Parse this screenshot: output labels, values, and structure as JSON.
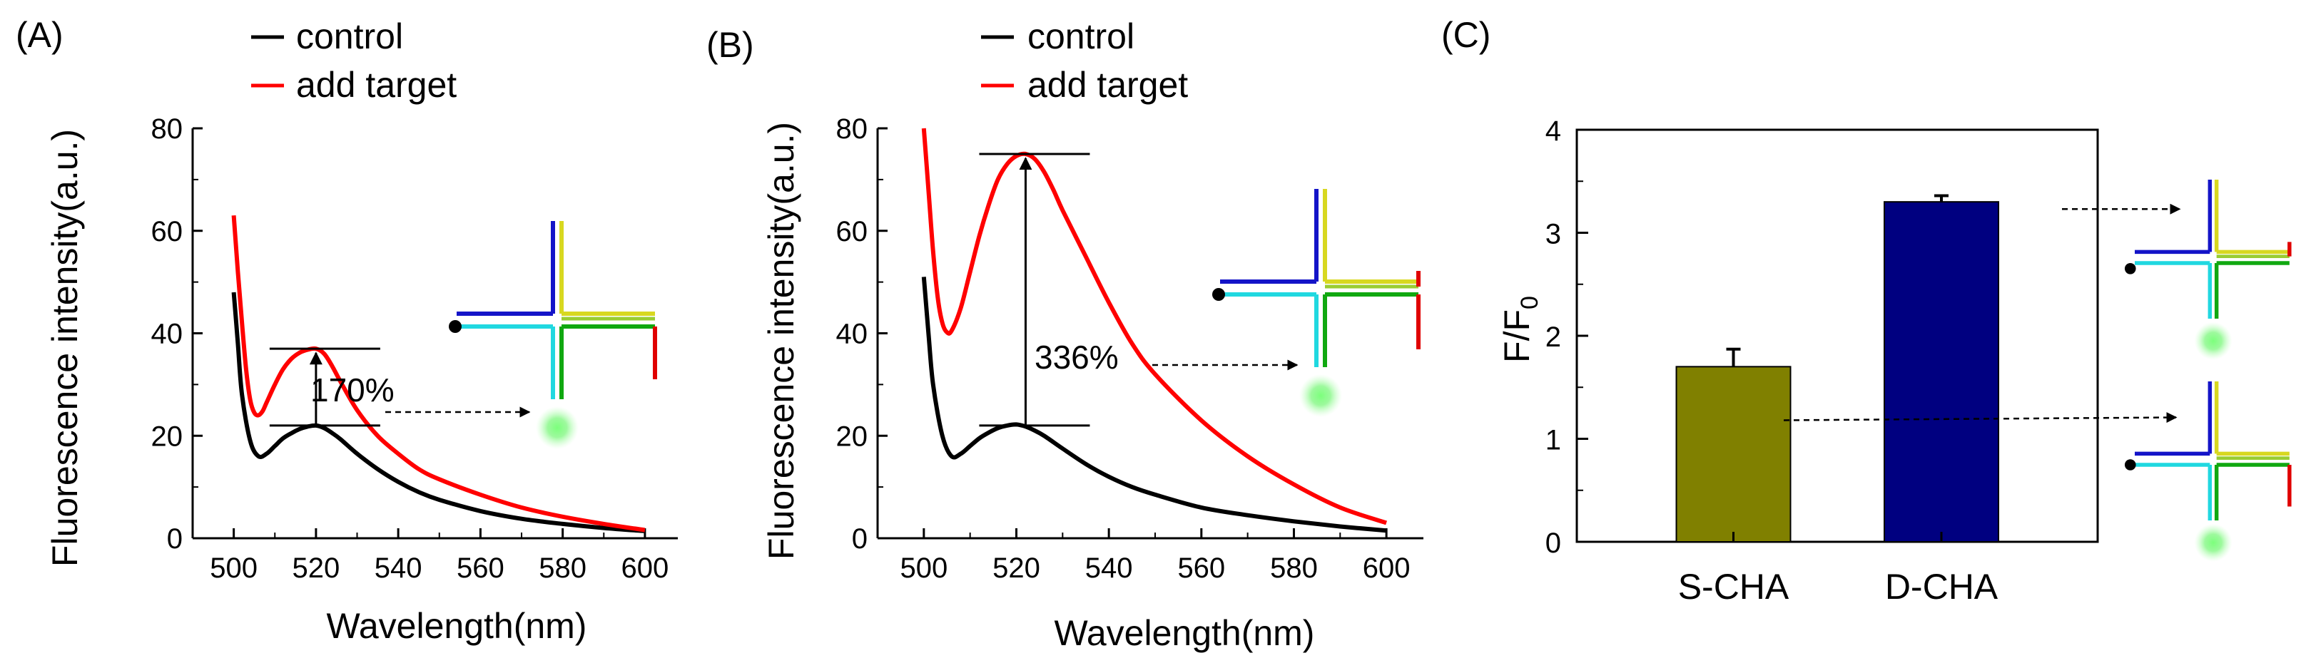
{
  "colors": {
    "control": "#000000",
    "target": "#ff0000",
    "bar_s": "#808000",
    "bar_d": "#000080",
    "blue": "#1414c8",
    "yellow": "#d8d820",
    "cyan": "#20d8e0",
    "green": "#10a810",
    "red": "#e00000",
    "glow": "#7cff7c"
  },
  "chart_data": [
    {
      "type": "line",
      "panel_label": "(A)",
      "xlabel": "Wavelength(nm)",
      "ylabel": "Fluorescence intensity(a.u.)",
      "xlim": [
        490,
        608
      ],
      "ylim": [
        0,
        80
      ],
      "xticks": [
        500,
        520,
        540,
        560,
        580,
        600
      ],
      "yticks": [
        0,
        20,
        40,
        60,
        80
      ],
      "legend": [
        "control",
        "add target"
      ],
      "series": [
        {
          "name": "control",
          "x": [
            500,
            501,
            502,
            504,
            506,
            508,
            510,
            512,
            514,
            516,
            518,
            520,
            522,
            524,
            526,
            530,
            535,
            540,
            545,
            550,
            560,
            570,
            580,
            590,
            600
          ],
          "y": [
            48,
            38,
            28,
            19,
            16,
            16.5,
            18,
            19.5,
            20.5,
            21.3,
            21.8,
            22,
            21.5,
            20.5,
            19.3,
            16.5,
            13.5,
            11,
            9,
            7.5,
            5.3,
            3.8,
            2.8,
            2,
            1.4
          ]
        },
        {
          "name": "add target",
          "x": [
            500,
            501,
            502,
            503,
            504,
            505,
            506,
            507,
            508,
            510,
            512,
            514,
            516,
            518,
            520,
            522,
            524,
            526,
            530,
            535,
            540,
            545,
            550,
            560,
            570,
            580,
            590,
            600
          ],
          "y": [
            63,
            52,
            42,
            33,
            27,
            24.5,
            24,
            24.8,
            26.5,
            30,
            33,
            35,
            36.2,
            36.8,
            37,
            36,
            33.5,
            30.5,
            25,
            20,
            16.5,
            13.5,
            11.5,
            8.5,
            6,
            4.2,
            2.8,
            1.6
          ]
        }
      ],
      "annotation": {
        "label": "170%",
        "x": 520,
        "y_low": 22,
        "y_high": 37
      }
    },
    {
      "type": "line",
      "panel_label": "(B)",
      "xlabel": "Wavelength(nm)",
      "ylabel": "Fluorescence intensity(a.u.)",
      "xlim": [
        490,
        608
      ],
      "ylim": [
        0,
        80
      ],
      "xticks": [
        500,
        520,
        540,
        560,
        580,
        600
      ],
      "yticks": [
        0,
        20,
        40,
        60,
        80
      ],
      "legend": [
        "control",
        "add target"
      ],
      "series": [
        {
          "name": "control",
          "x": [
            500,
            501,
            502,
            504,
            506,
            508,
            510,
            512,
            514,
            516,
            518,
            520,
            522,
            524,
            526,
            530,
            535,
            540,
            545,
            550,
            560,
            570,
            580,
            590,
            600
          ],
          "y": [
            51,
            40,
            30,
            20,
            16,
            16.5,
            18,
            19.5,
            20.6,
            21.5,
            22,
            22.2,
            21.8,
            21,
            20,
            17.5,
            14.5,
            12,
            10,
            8.5,
            6,
            4.5,
            3.3,
            2.3,
            1.5
          ]
        },
        {
          "name": "add target",
          "x": [
            500,
            501,
            502,
            503,
            504,
            505,
            506,
            508,
            510,
            512,
            514,
            516,
            518,
            520,
            522,
            524,
            526,
            528,
            530,
            535,
            540,
            545,
            550,
            560,
            570,
            580,
            590,
            600
          ],
          "y": [
            80,
            68,
            56,
            47,
            42,
            40.2,
            40.5,
            45,
            52,
            59,
            65,
            70,
            73,
            74.6,
            75,
            74,
            71.5,
            68,
            64,
            55,
            46,
            38,
            32,
            23,
            16,
            10.5,
            6,
            3
          ]
        }
      ],
      "annotation": {
        "label": "336%",
        "x": 522,
        "y_low": 22,
        "y_high": 75
      }
    },
    {
      "type": "bar",
      "panel_label": "(C)",
      "categories": [
        "S-CHA",
        "D-CHA"
      ],
      "values": [
        1.7,
        3.3
      ],
      "errors": [
        0.17,
        0.06
      ],
      "ylabel_main": "F/F",
      "ylabel_sub": "0",
      "ylim": [
        0,
        4
      ],
      "yticks": [
        0,
        1,
        2,
        3,
        4
      ]
    }
  ]
}
